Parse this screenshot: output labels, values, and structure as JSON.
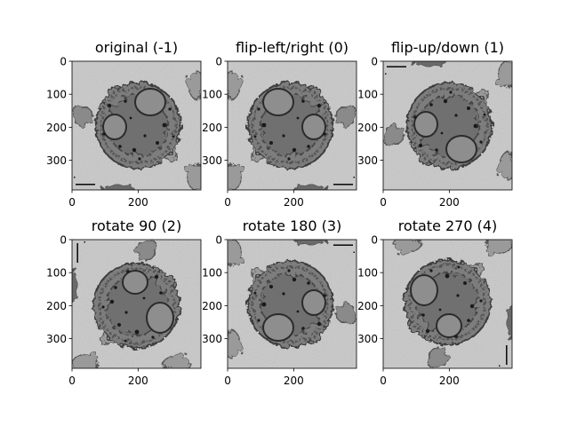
{
  "figure": {
    "background": "#ffffff",
    "panels": [
      {
        "title": "original (-1)",
        "transform": "none",
        "y_ticks": [
          "0",
          "100",
          "200",
          "300"
        ],
        "x_ticks": [
          "0",
          "200"
        ]
      },
      {
        "title": "flip-left/right (0)",
        "transform": "flip-lr",
        "y_ticks": [
          "0",
          "100",
          "200",
          "300"
        ],
        "x_ticks": [
          "0",
          "200"
        ]
      },
      {
        "title": "flip-up/down (1)",
        "transform": "flip-ud",
        "y_ticks": [
          "0",
          "100",
          "200",
          "300"
        ],
        "x_ticks": [
          "0",
          "200"
        ]
      },
      {
        "title": "rotate 90 (2)",
        "transform": "rot90",
        "y_ticks": [
          "0",
          "100",
          "200",
          "300"
        ],
        "x_ticks": [
          "0",
          "200"
        ]
      },
      {
        "title": "rotate 180 (3)",
        "transform": "rot180",
        "y_ticks": [
          "0",
          "100",
          "200",
          "300"
        ],
        "x_ticks": [
          "0",
          "200"
        ]
      },
      {
        "title": "rotate 270 (4)",
        "transform": "rot270",
        "y_ticks": [
          "0",
          "100",
          "200",
          "300"
        ],
        "x_ticks": [
          "0",
          "200"
        ]
      }
    ],
    "image": {
      "description_icon": "electron-micrograph-cell",
      "colormap": "gray",
      "extent": [
        0,
        390
      ]
    }
  }
}
